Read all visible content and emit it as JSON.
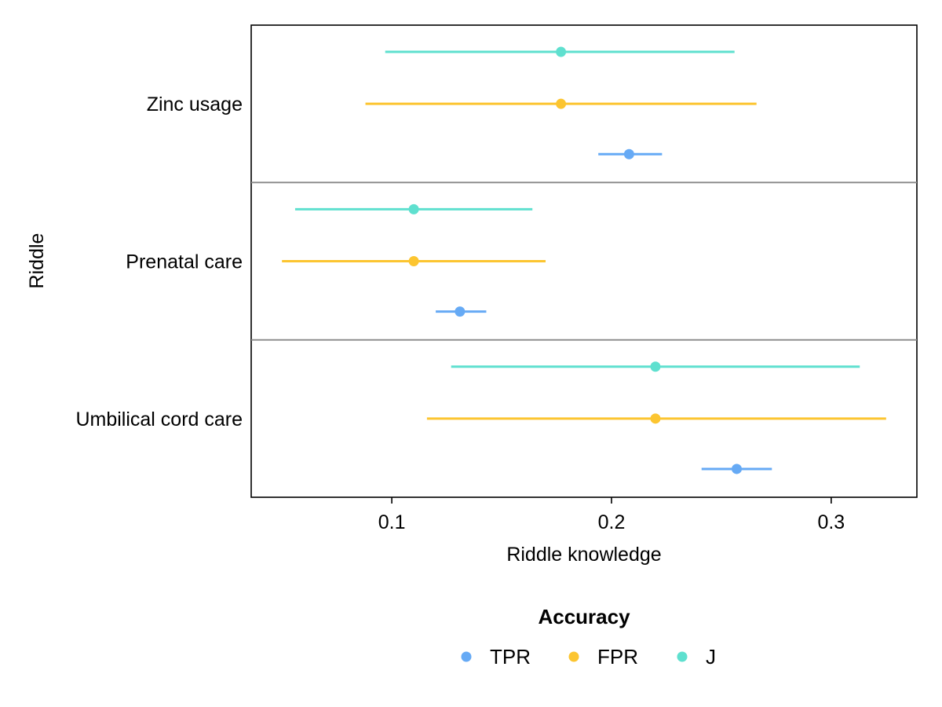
{
  "chart_data": {
    "type": "forest",
    "xlabel": "Riddle knowledge",
    "ylabel": "Riddle",
    "xlim": [
      0.036,
      0.339
    ],
    "x_ticks": [
      0.1,
      0.2,
      0.3
    ],
    "x_tick_labels": [
      "0.1",
      "0.2",
      "0.3"
    ],
    "grid": false,
    "categories": [
      "Zinc usage",
      "Prenatal care",
      "Umbilical cord care"
    ],
    "legend": {
      "title": "Accuracy",
      "position": "bottom",
      "entries": [
        "TPR",
        "FPR",
        "J"
      ]
    },
    "series": [
      {
        "name": "TPR",
        "color": "#66aaf5",
        "points": [
          {
            "category": "Zinc usage",
            "estimate": 0.208,
            "lower": 0.194,
            "upper": 0.223
          },
          {
            "category": "Prenatal care",
            "estimate": 0.131,
            "lower": 0.12,
            "upper": 0.143
          },
          {
            "category": "Umbilical cord care",
            "estimate": 0.257,
            "lower": 0.241,
            "upper": 0.273
          }
        ]
      },
      {
        "name": "FPR",
        "color": "#fcc530",
        "points": [
          {
            "category": "Zinc usage",
            "estimate": 0.177,
            "lower": 0.088,
            "upper": 0.266
          },
          {
            "category": "Prenatal care",
            "estimate": 0.11,
            "lower": 0.05,
            "upper": 0.17
          },
          {
            "category": "Umbilical cord care",
            "estimate": 0.22,
            "lower": 0.116,
            "upper": 0.325
          }
        ]
      },
      {
        "name": "J",
        "color": "#5fe0cf",
        "points": [
          {
            "category": "Zinc usage",
            "estimate": 0.177,
            "lower": 0.097,
            "upper": 0.256
          },
          {
            "category": "Prenatal care",
            "estimate": 0.11,
            "lower": 0.056,
            "upper": 0.164
          },
          {
            "category": "Umbilical cord care",
            "estimate": 0.22,
            "lower": 0.127,
            "upper": 0.313
          }
        ]
      }
    ]
  }
}
